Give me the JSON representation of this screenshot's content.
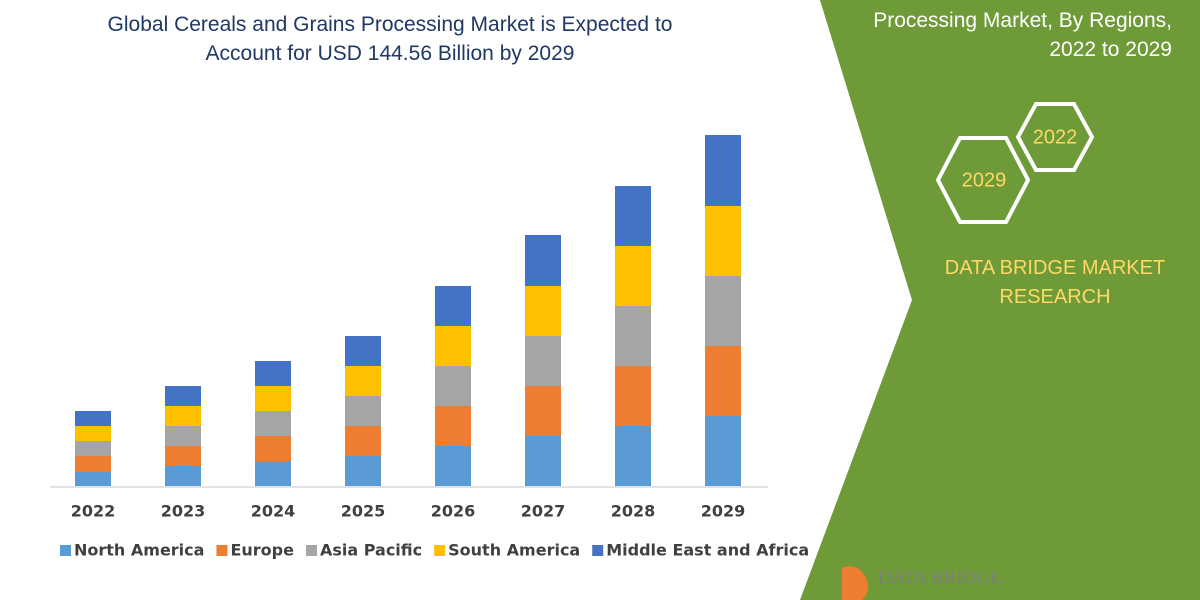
{
  "chart_data": {
    "type": "bar",
    "stacked": true,
    "title": "Global Cereals and Grains Processing Market is Expected to Account for USD 144.56 Billion by 2029",
    "categories": [
      "2022",
      "2023",
      "2024",
      "2025",
      "2026",
      "2027",
      "2028",
      "2029"
    ],
    "series": [
      {
        "name": "North America",
        "color": "#5b9bd5",
        "values": [
          14,
          20,
          25,
          30,
          40,
          50,
          60,
          70
        ]
      },
      {
        "name": "Europe",
        "color": "#ed7d31",
        "values": [
          16,
          20,
          25,
          30,
          40,
          50,
          60,
          70
        ]
      },
      {
        "name": "Asia Pacific",
        "color": "#a5a5a5",
        "values": [
          15,
          20,
          25,
          30,
          40,
          50,
          60,
          70
        ]
      },
      {
        "name": "South America",
        "color": "#ffc000",
        "values": [
          15,
          20,
          25,
          30,
          40,
          50,
          60,
          70
        ]
      },
      {
        "name": "Middle East and Africa",
        "color": "#4472c4",
        "values": [
          15,
          20,
          25,
          30,
          40,
          51,
          60,
          71
        ]
      }
    ],
    "ylim": [
      0,
      360
    ],
    "legend": "bottom"
  },
  "panel": {
    "heading": "Processing Market, By Regions, 2022 to 2029",
    "hexagons": [
      "2022",
      "2029"
    ],
    "brand": "DATA BRIDGE MARKET RESEARCH",
    "logo": "DATA BRIDGE"
  }
}
